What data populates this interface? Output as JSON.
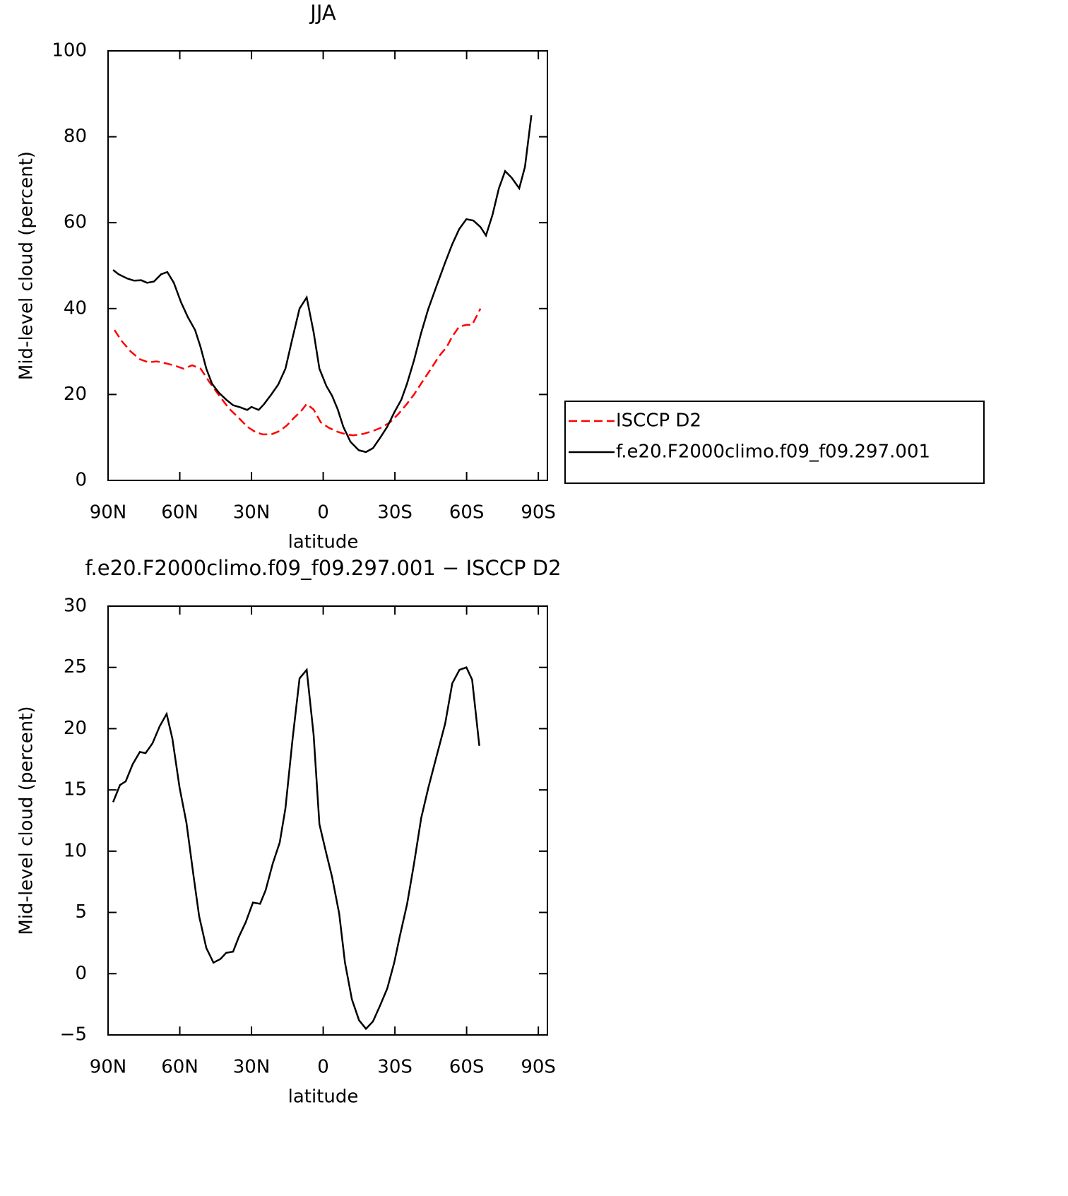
{
  "chart_data": [
    {
      "type": "line",
      "title": "JJA",
      "x_label": "latitude",
      "y_label": "Mid-level cloud (percent)",
      "xlim": [
        90,
        -93.8
      ],
      "xticks": [
        {
          "value": 90,
          "label": "90N"
        },
        {
          "value": 60,
          "label": "60N"
        },
        {
          "value": 30,
          "label": "30N"
        },
        0,
        {
          "value": -30,
          "label": "30S"
        },
        {
          "value": -60,
          "label": "60S"
        },
        {
          "value": -90,
          "label": "90S"
        }
      ],
      "ylim": [
        0,
        100
      ],
      "yticks": [
        0,
        20,
        40,
        60,
        80,
        100
      ],
      "legend": "outside-right",
      "series": [
        {
          "name": "ISCCP D2",
          "color": "#ff0000",
          "dash": true,
          "x": [
            87.3,
            84.4,
            80.5,
            76.7,
            73.2,
            69.6,
            65.5,
            62.0,
            58.4,
            54.8,
            51.3,
            47.7,
            43.6,
            39.5,
            34.7,
            31.8,
            28.2,
            25.3,
            21.7,
            18.2,
            15.2,
            12.3,
            9.3,
            6.9,
            4.0,
            1.0,
            -2.5,
            -6.1,
            -9.6,
            -12.6,
            -16.7,
            -20.8,
            -24.4,
            -27.9,
            -31.5,
            -35.0,
            -38.0,
            -41.5,
            -45.1,
            -48.6,
            -51.6,
            -54.0,
            -56.9,
            -59.9,
            -62.3,
            -64.6,
            -65.8
          ],
          "values": [
            35,
            32.5,
            30,
            28.2,
            27.5,
            27.7,
            27.2,
            26.7,
            26,
            26.8,
            26,
            23,
            19.8,
            16.8,
            14.2,
            12.5,
            11.2,
            10.7,
            10.7,
            11.5,
            12.8,
            14.5,
            16.1,
            17.8,
            16.5,
            13.5,
            12.2,
            11.3,
            10.7,
            10.5,
            10.8,
            11.5,
            12.3,
            13.5,
            15.5,
            17.8,
            20,
            23,
            26,
            29,
            31,
            33.5,
            35.8,
            36.2,
            36.2,
            38.7,
            40
          ]
        },
        {
          "name": "f.e20.F2000climo.f09_f09.297.001",
          "color": "#000000",
          "dash": false,
          "x": [
            87.9,
            85.6,
            82.0,
            79.1,
            76.1,
            73.7,
            70.8,
            67.8,
            65.2,
            62.5,
            59.5,
            56.6,
            53.6,
            51.3,
            48.9,
            46.5,
            43.6,
            40.6,
            37.7,
            34.7,
            31.8,
            30.0,
            27.0,
            24.7,
            21.7,
            18.8,
            15.8,
            12.9,
            9.9,
            6.9,
            4.0,
            1.6,
            -1.3,
            -3.7,
            -6.1,
            -8.4,
            -11.4,
            -14.9,
            -17.9,
            -20.8,
            -23.8,
            -26.8,
            -29.7,
            -32.7,
            -35.0,
            -38.0,
            -40.9,
            -43.9,
            -47.5,
            -51.0,
            -54.0,
            -56.9,
            -59.9,
            -62.8,
            -65.8,
            -68.1,
            -70.8,
            -73.5,
            -76.1,
            -78.8,
            -82.0,
            -84.4,
            -87.1
          ],
          "values": [
            49,
            48,
            47,
            46.5,
            46.6,
            46,
            46.3,
            48,
            48.5,
            46,
            41.5,
            38,
            35,
            31,
            26,
            22.5,
            20.4,
            18.8,
            17.5,
            17,
            16.4,
            17.1,
            16.4,
            17.8,
            20,
            22.3,
            26,
            33,
            40,
            42.6,
            34.5,
            26,
            22,
            19.7,
            16.5,
            12.5,
            9,
            7,
            6.6,
            7.5,
            9.9,
            12.5,
            15.8,
            18.8,
            22.4,
            28,
            34.2,
            39.8,
            45.4,
            50.7,
            55,
            58.5,
            60.8,
            60.5,
            59,
            57,
            61.8,
            68,
            72,
            70.5,
            68,
            73,
            85
          ]
        }
      ]
    },
    {
      "type": "line",
      "title": "f.e20.F2000climo.f09_f09.297.001 − ISCCP D2",
      "x_label": "latitude",
      "y_label": "Mid-level cloud (percent)",
      "xlim": [
        90,
        -93.8
      ],
      "xticks": [
        {
          "value": 90,
          "label": "90N"
        },
        {
          "value": 60,
          "label": "60N"
        },
        {
          "value": 30,
          "label": "30N"
        },
        0,
        {
          "value": -30,
          "label": "30S"
        },
        {
          "value": -60,
          "label": "60S"
        },
        {
          "value": -90,
          "label": "90S"
        }
      ],
      "ylim": [
        -5,
        30
      ],
      "yticks": [
        {
          "value": -5,
          "label": "−5"
        },
        0,
        5,
        10,
        15,
        20,
        25,
        30
      ],
      "series": [
        {
          "color": "#000000",
          "dash": false,
          "x": [
            87.9,
            85.0,
            82.6,
            79.7,
            76.7,
            74.3,
            71.4,
            68.4,
            65.5,
            63.1,
            60.1,
            57.2,
            54.2,
            51.9,
            48.9,
            45.9,
            43.0,
            40.6,
            37.7,
            35.3,
            32.4,
            29.4,
            26.4,
            24.1,
            21.1,
            18.2,
            15.8,
            12.8,
            9.9,
            6.9,
            4.0,
            1.6,
            -1.3,
            -3.7,
            -6.7,
            -9.1,
            -12.0,
            -15.0,
            -17.9,
            -20.8,
            -23.8,
            -26.8,
            -29.7,
            -32.1,
            -35.1,
            -38.0,
            -41.0,
            -44.0,
            -47.5,
            -51.0,
            -54.0,
            -57.0,
            -59.9,
            -62.3,
            -65.3
          ],
          "values": [
            14,
            15.4,
            15.7,
            17.1,
            18.1,
            18,
            18.8,
            20.2,
            21.2,
            19.2,
            15.2,
            12.3,
            7.9,
            4.7,
            2.1,
            0.9,
            1.2,
            1.7,
            1.8,
            3,
            4.2,
            5.8,
            5.7,
            6.8,
            9,
            10.7,
            13.5,
            19.2,
            24.1,
            24.8,
            19.5,
            12.2,
            9.8,
            7.9,
            4.9,
            0.9,
            -2.1,
            -3.8,
            -4.5,
            -3.9,
            -2.6,
            -1.2,
            0.9,
            3.1,
            5.7,
            9,
            12.7,
            15.2,
            17.8,
            20.4,
            23.7,
            24.8,
            25,
            24,
            18.6
          ]
        }
      ]
    }
  ]
}
